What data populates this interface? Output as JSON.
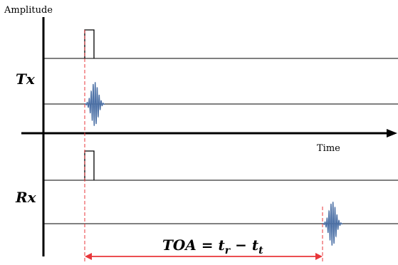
{
  "labels": {
    "y_axis": "Amplitude",
    "x_axis": "Time",
    "tx": "Tx",
    "rx": "Rx",
    "toa_formula": {
      "prefix": "TOA = t",
      "sub1": "r",
      "minus": " − t",
      "sub2": "t"
    }
  },
  "colors": {
    "axis": "#000000",
    "lines": "#000000",
    "marker": "#e8363a",
    "wave": "#4a6fa5"
  }
}
